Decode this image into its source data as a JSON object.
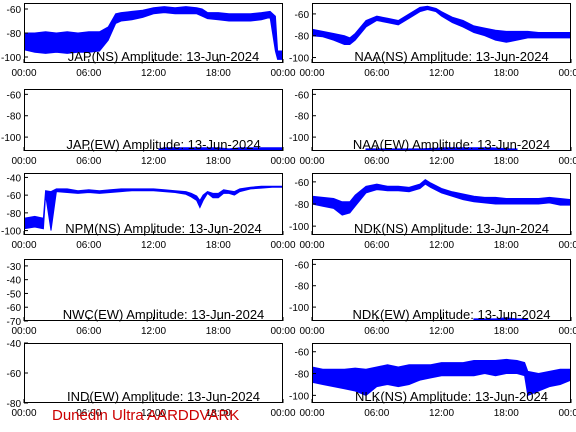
{
  "footer": {
    "credit": "Dunedin Ultra AARDDVARK",
    "credit_color": "#cc0000"
  },
  "colors": {
    "trace": "#0000ff",
    "axis": "#000000",
    "background": "#ffffff"
  },
  "chart_data": [
    {
      "id": "jap-ns",
      "type": "line",
      "title": "JAP(NS) Amplitude: 13-Jun-2024",
      "xticks": [
        "00:00",
        "06:00",
        "12:00",
        "18:00",
        "00:00"
      ],
      "xlim": [
        0,
        24
      ],
      "yticks": [
        -60,
        -80,
        -100
      ],
      "ylim": [
        -105,
        -55
      ],
      "series": [
        {
          "band": true,
          "points": [
            [
              0,
              -94,
              -80
            ],
            [
              1,
              -96,
              -80
            ],
            [
              2,
              -97,
              -79
            ],
            [
              3,
              -96,
              -80
            ],
            [
              4,
              -97,
              -79
            ],
            [
              5,
              -96,
              -80
            ],
            [
              6,
              -96,
              -79
            ],
            [
              7,
              -95,
              -79
            ],
            [
              7.8,
              -86,
              -75
            ],
            [
              8.5,
              -72,
              -64
            ],
            [
              9,
              -70,
              -63
            ],
            [
              10,
              -69,
              -62
            ],
            [
              11,
              -67,
              -61
            ],
            [
              12,
              -64,
              -59
            ],
            [
              13,
              -63,
              -58
            ],
            [
              14,
              -64,
              -59
            ],
            [
              15,
              -64,
              -58
            ],
            [
              16,
              -64,
              -59
            ],
            [
              16.5,
              -66,
              -60
            ],
            [
              17,
              -68,
              -63
            ],
            [
              18,
              -69,
              -63
            ],
            [
              19,
              -70,
              -64
            ],
            [
              20,
              -70,
              -64
            ],
            [
              21,
              -70,
              -64
            ],
            [
              22,
              -69,
              -63
            ],
            [
              22.8,
              -67,
              -62
            ],
            [
              23.3,
              -95,
              -66
            ],
            [
              23.5,
              -102,
              -95
            ],
            [
              24,
              -102,
              -95
            ]
          ]
        }
      ]
    },
    {
      "id": "naa-ns",
      "type": "line",
      "title": "NAA(NS) Amplitude: 13-Jun-2024",
      "xticks": [
        "00:00",
        "06:00",
        "12:00",
        "18:00",
        "00:00"
      ],
      "xlim": [
        0,
        24
      ],
      "yticks": [
        -60,
        -80,
        -100
      ],
      "ylim": [
        -105,
        -50
      ],
      "series": [
        {
          "band": true,
          "points": [
            [
              0,
              -80,
              -74
            ],
            [
              1,
              -81,
              -76
            ],
            [
              2,
              -84,
              -78
            ],
            [
              3,
              -88,
              -80
            ],
            [
              3.5,
              -88,
              -82
            ],
            [
              4,
              -84,
              -78
            ],
            [
              5,
              -72,
              -66
            ],
            [
              6,
              -66,
              -62
            ],
            [
              7,
              -68,
              -64
            ],
            [
              8,
              -70,
              -66
            ],
            [
              9,
              -64,
              -60
            ],
            [
              10,
              -58,
              -54
            ],
            [
              10.7,
              -56,
              -53
            ],
            [
              11.5,
              -58,
              -55
            ],
            [
              12,
              -62,
              -58
            ],
            [
              13,
              -68,
              -63
            ],
            [
              14,
              -72,
              -66
            ],
            [
              15,
              -77,
              -71
            ],
            [
              16,
              -80,
              -73
            ],
            [
              17,
              -84,
              -75
            ],
            [
              18,
              -86,
              -76
            ],
            [
              19,
              -84,
              -76
            ],
            [
              20,
              -82,
              -76
            ],
            [
              21,
              -82,
              -77
            ],
            [
              22,
              -82,
              -77
            ],
            [
              23,
              -82,
              -77
            ],
            [
              24,
              -82,
              -77
            ]
          ]
        }
      ]
    },
    {
      "id": "jap-ew",
      "type": "line",
      "title": "JAP(EW) Amplitude: 13-Jun-2024",
      "xticks": [
        "00:00",
        "06:00",
        "12:00",
        "18:00",
        "00:00"
      ],
      "xlim": [
        0,
        24
      ],
      "yticks": [
        -60,
        -80,
        -100
      ],
      "ylim": [
        -113,
        -55
      ],
      "series": [
        {
          "band": true,
          "points": [
            [
              12.5,
              -112,
              -111
            ],
            [
              13,
              -112,
              -110
            ],
            [
              14,
              -112,
              -110
            ],
            [
              15,
              -112,
              -110
            ],
            [
              16,
              -112,
              -110
            ],
            [
              17,
              -112,
              -110
            ],
            [
              18,
              -112,
              -110
            ],
            [
              19,
              -112,
              -111
            ],
            [
              20,
              -112,
              -110
            ],
            [
              21,
              -112,
              -110
            ],
            [
              22,
              -112,
              -110
            ],
            [
              23,
              -112,
              -110
            ],
            [
              24,
              -112,
              -110
            ]
          ]
        }
      ]
    },
    {
      "id": "naa-ew",
      "type": "line",
      "title": "NAA(EW) Amplitude: 13-Jun-2024",
      "xticks": [
        "00:00",
        "06:00",
        "12:00",
        "18:00",
        "00:00"
      ],
      "xlim": [
        0,
        24
      ],
      "yticks": [
        -60,
        -80,
        -100
      ],
      "ylim": [
        -113,
        -55
      ],
      "series": [
        {
          "band": true,
          "points": [
            [
              5,
              -112,
              -111
            ],
            [
              5.5,
              -112,
              -111
            ],
            [
              9.5,
              -112,
              -111
            ],
            [
              10,
              -112,
              -111
            ],
            [
              12.5,
              -112,
              -110
            ],
            [
              13,
              -112,
              -110
            ],
            [
              16,
              -112,
              -110
            ],
            [
              16.5,
              -112,
              -110
            ],
            [
              18.5,
              -112,
              -111
            ],
            [
              19,
              -112,
              -111
            ]
          ]
        }
      ]
    },
    {
      "id": "npm-ns",
      "type": "line",
      "title": "NPM(NS) Amplitude: 13-Jun-2024",
      "xticks": [
        "00:00",
        "06:00",
        "12:00",
        "18:00",
        "00:00"
      ],
      "xlim": [
        0,
        24
      ],
      "yticks": [
        -40,
        -60,
        -80,
        -100
      ],
      "ylim": [
        -105,
        -35
      ],
      "series": [
        {
          "band": true,
          "points": [
            [
              0,
              -98,
              -86
            ],
            [
              1,
              -96,
              -84
            ],
            [
              1.8,
              -98,
              -86
            ],
            [
              2,
              -60,
              -55
            ],
            [
              2.5,
              -100,
              -56
            ],
            [
              3,
              -56,
              -53
            ],
            [
              4,
              -57,
              -53
            ],
            [
              5,
              -58,
              -55
            ],
            [
              6,
              -57,
              -54
            ],
            [
              7,
              -58,
              -55
            ],
            [
              8,
              -57,
              -54
            ],
            [
              9,
              -56,
              -53
            ],
            [
              10,
              -55,
              -53
            ],
            [
              11,
              -55,
              -53
            ],
            [
              12,
              -55,
              -53
            ],
            [
              13,
              -56,
              -54
            ],
            [
              14,
              -57,
              -55
            ],
            [
              15,
              -59,
              -56
            ],
            [
              15.5,
              -62,
              -58
            ],
            [
              16,
              -66,
              -61
            ],
            [
              16.3,
              -74,
              -66
            ],
            [
              16.6,
              -66,
              -60
            ],
            [
              17,
              -58,
              -56
            ],
            [
              17.5,
              -63,
              -58
            ],
            [
              18,
              -63,
              -58
            ],
            [
              18.5,
              -58,
              -54
            ],
            [
              19,
              -58,
              -55
            ],
            [
              19.5,
              -60,
              -56
            ],
            [
              20,
              -56,
              -53
            ],
            [
              21,
              -53,
              -51
            ],
            [
              22,
              -52,
              -50
            ],
            [
              23,
              -51,
              -50
            ],
            [
              24,
              -51,
              -50
            ]
          ]
        }
      ]
    },
    {
      "id": "ndk-ns",
      "type": "line",
      "title": "NDK(NS) Amplitude: 13-Jun-2024",
      "xticks": [
        "00:00",
        "06:00",
        "12:00",
        "18:00",
        "00:00"
      ],
      "xlim": [
        0,
        24
      ],
      "yticks": [
        -60,
        -80,
        -100
      ],
      "ylim": [
        -108,
        -52
      ],
      "series": [
        {
          "band": true,
          "points": [
            [
              0,
              -80,
              -73
            ],
            [
              1,
              -82,
              -74
            ],
            [
              2,
              -84,
              -75
            ],
            [
              2.8,
              -90,
              -78
            ],
            [
              3.5,
              -88,
              -78
            ],
            [
              4,
              -82,
              -72
            ],
            [
              5,
              -70,
              -64
            ],
            [
              6,
              -67,
              -62
            ],
            [
              7,
              -68,
              -64
            ],
            [
              8,
              -68,
              -64
            ],
            [
              9,
              -69,
              -65
            ],
            [
              10,
              -66,
              -62
            ],
            [
              10.5,
              -62,
              -58
            ],
            [
              11,
              -65,
              -61
            ],
            [
              12,
              -70,
              -66
            ],
            [
              13,
              -73,
              -69
            ],
            [
              14,
              -76,
              -71
            ],
            [
              15,
              -78,
              -73
            ],
            [
              16,
              -79,
              -74
            ],
            [
              17,
              -80,
              -74
            ],
            [
              18,
              -80,
              -75
            ],
            [
              19,
              -80,
              -75
            ],
            [
              20,
              -80,
              -75
            ],
            [
              21,
              -80,
              -75
            ],
            [
              22,
              -79,
              -74
            ],
            [
              23,
              -81,
              -75
            ],
            [
              24,
              -81,
              -76
            ]
          ]
        }
      ]
    },
    {
      "id": "nwc-ew",
      "type": "line",
      "title": "NWC(EW) Amplitude: 13-Jun-2024",
      "xticks": [
        "00:00",
        "06:00",
        "12:00",
        "18:00",
        "00:00"
      ],
      "xlim": [
        0,
        24
      ],
      "yticks": [
        -30,
        -40,
        -50,
        -60,
        -70
      ],
      "ylim": [
        -70,
        -25
      ],
      "series": []
    },
    {
      "id": "ndk-ew",
      "type": "line",
      "title": "NDK(EW) Amplitude: 13-Jun-2024",
      "xticks": [
        "00:00",
        "06:00",
        "12:00",
        "18:00",
        "00:00"
      ],
      "xlim": [
        0,
        24
      ],
      "yticks": [
        -60,
        -80,
        -100
      ],
      "ylim": [
        -113,
        -55
      ],
      "series": [
        {
          "band": true,
          "points": [
            [
              15,
              -112,
              -111
            ],
            [
              16,
              -112,
              -111
            ],
            [
              17,
              -112,
              -111
            ],
            [
              18,
              -112,
              -110
            ],
            [
              19,
              -112,
              -111
            ],
            [
              20,
              -112,
              -111
            ]
          ]
        }
      ]
    },
    {
      "id": "ind-ew",
      "type": "line",
      "title": "IND(EW) Amplitude: 13-Jun-2024",
      "xticks": [
        "00:00",
        "06:00",
        "12:00",
        "18:00",
        "00:00"
      ],
      "xlim": [
        0,
        24
      ],
      "yticks": [
        -40,
        -60,
        -80
      ],
      "ylim": [
        -80,
        -40
      ],
      "series": []
    },
    {
      "id": "nlk-ns",
      "type": "line",
      "title": "NLK(NS) Amplitude: 13-Jun-2024",
      "xticks": [
        "00:00",
        "06:00",
        "12:00",
        "18:00",
        "00:00"
      ],
      "xlim": [
        0,
        24
      ],
      "yticks": [
        -60,
        -80,
        -100
      ],
      "ylim": [
        -107,
        -52
      ],
      "series": [
        {
          "band": true,
          "points": [
            [
              0,
              -88,
              -74
            ],
            [
              1,
              -90,
              -76
            ],
            [
              2,
              -92,
              -76
            ],
            [
              3,
              -94,
              -76
            ],
            [
              4,
              -96,
              -75
            ],
            [
              5,
              -100,
              -76
            ],
            [
              6,
              -92,
              -74
            ],
            [
              7,
              -90,
              -72
            ],
            [
              8,
              -92,
              -74
            ],
            [
              9,
              -90,
              -72
            ],
            [
              10,
              -86,
              -72
            ],
            [
              11,
              -84,
              -72
            ],
            [
              12,
              -82,
              -70
            ],
            [
              13,
              -82,
              -70
            ],
            [
              14,
              -82,
              -70
            ],
            [
              15,
              -82,
              -68
            ],
            [
              16,
              -80,
              -68
            ],
            [
              17,
              -82,
              -68
            ],
            [
              18,
              -80,
              -67
            ],
            [
              19,
              -80,
              -68
            ],
            [
              19.7,
              -82,
              -70
            ],
            [
              20,
              -100,
              -78
            ],
            [
              21,
              -96,
              -80
            ],
            [
              22,
              -92,
              -78
            ],
            [
              23,
              -90,
              -76
            ],
            [
              24,
              -86,
              -76
            ]
          ]
        }
      ]
    }
  ]
}
